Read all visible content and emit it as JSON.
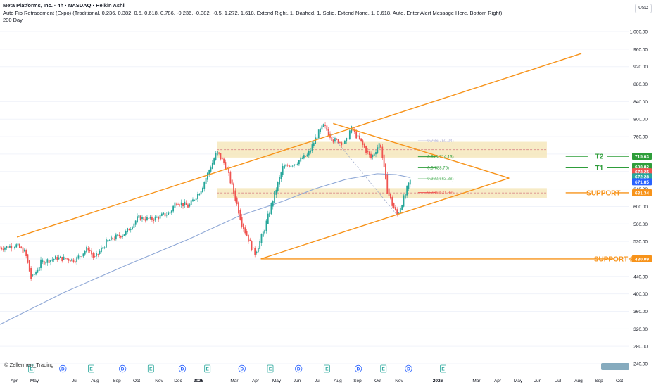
{
  "header": {
    "title": "Meta Platforms, Inc. · 4h · NASDAQ · Heikin Ashi",
    "indicator1": "Auto Fib Retracement (Expo) (Traditional, 0.236, 0.382, 0.5, 0.618, 0.786, -0.236, -0.382, -0.5, 1.272, 1.618, Extend Right, 1, Dashed, 1, Solid, Extend None, 1, 0.618, Auto, Enter Alert Message Here, Bottom Right)",
    "indicator2": "200 Day"
  },
  "currency_button": "USD",
  "credit": "© Zellermen_Trading",
  "colors": {
    "up": "#26a69a",
    "down": "#ef5350",
    "orange": "#f7931a",
    "green_line": "#2e9d3a",
    "ma": "#8fa8d6",
    "zone": "#f5e6b8",
    "grid": "#f0f3fa"
  },
  "chart_data": {
    "type": "candlestick",
    "symbol": "META",
    "timeframe": "4h",
    "y_axis": {
      "min": 240,
      "max": 1020,
      "ticks": [
        "240.00",
        "280.00",
        "320.00",
        "360.00",
        "400.00",
        "440.00",
        "480.00",
        "520.00",
        "560.00",
        "600.00",
        "640.00",
        "680.00",
        "720.00",
        "760.00",
        "800.00",
        "840.00",
        "880.00",
        "920.00",
        "960.00",
        "1,000.00"
      ]
    },
    "x_axis": {
      "labels": [
        "Apr",
        "May",
        "Jul",
        "Aug",
        "Sep",
        "Oct",
        "Nov",
        "Dec",
        "2025",
        "Mar",
        "Apr",
        "May",
        "Jun",
        "Jul",
        "Aug",
        "Sep",
        "Oct",
        "Nov",
        "2026",
        "Mar",
        "Apr",
        "May",
        "Jun",
        "Jul",
        "Aug",
        "Sep",
        "Oct"
      ],
      "bold": [
        "2025",
        "2026"
      ]
    },
    "price_path": [
      {
        "x": 0.0,
        "p": 505
      },
      {
        "x": 2.5,
        "p": 512
      },
      {
        "x": 4.0,
        "p": 495
      },
      {
        "x": 5.0,
        "p": 432
      },
      {
        "x": 6.5,
        "p": 472
      },
      {
        "x": 9.0,
        "p": 482
      },
      {
        "x": 12.0,
        "p": 478
      },
      {
        "x": 14.0,
        "p": 505
      },
      {
        "x": 15.0,
        "p": 480
      },
      {
        "x": 17.0,
        "p": 520
      },
      {
        "x": 20.0,
        "p": 540
      },
      {
        "x": 22.0,
        "p": 575
      },
      {
        "x": 24.0,
        "p": 570
      },
      {
        "x": 27.0,
        "p": 585
      },
      {
        "x": 28.0,
        "p": 612
      },
      {
        "x": 30.0,
        "p": 600
      },
      {
        "x": 32.0,
        "p": 640
      },
      {
        "x": 34.5,
        "p": 725
      },
      {
        "x": 36.0,
        "p": 690
      },
      {
        "x": 37.5,
        "p": 615
      },
      {
        "x": 38.5,
        "p": 560
      },
      {
        "x": 40.5,
        "p": 490
      },
      {
        "x": 42.0,
        "p": 545
      },
      {
        "x": 43.5,
        "p": 620
      },
      {
        "x": 45.0,
        "p": 690
      },
      {
        "x": 47.0,
        "p": 700
      },
      {
        "x": 49.0,
        "p": 718
      },
      {
        "x": 50.5,
        "p": 765
      },
      {
        "x": 51.5,
        "p": 785
      },
      {
        "x": 53.0,
        "p": 752
      },
      {
        "x": 55.0,
        "p": 745
      },
      {
        "x": 55.8,
        "p": 780
      },
      {
        "x": 57.5,
        "p": 745
      },
      {
        "x": 59.0,
        "p": 710
      },
      {
        "x": 60.5,
        "p": 748
      },
      {
        "x": 61.5,
        "p": 640
      },
      {
        "x": 62.5,
        "p": 600
      },
      {
        "x": 63.2,
        "p": 580
      },
      {
        "x": 64.5,
        "p": 630
      },
      {
        "x": 65.3,
        "p": 660
      }
    ],
    "moving_average": {
      "name": "200 Day",
      "points": [
        {
          "x": 0,
          "p": 330
        },
        {
          "x": 10,
          "p": 402
        },
        {
          "x": 20,
          "p": 465
        },
        {
          "x": 30,
          "p": 525
        },
        {
          "x": 38,
          "p": 578
        },
        {
          "x": 45,
          "p": 612
        },
        {
          "x": 50,
          "p": 640
        },
        {
          "x": 55,
          "p": 662
        },
        {
          "x": 60,
          "p": 675
        },
        {
          "x": 63,
          "p": 673
        },
        {
          "x": 65.3,
          "p": 666
        }
      ]
    },
    "current_price": 672.28,
    "trendlines": [
      {
        "name": "channel-upper",
        "from": {
          "x": 2.7,
          "p": 530
        },
        "to": {
          "x": 92.5,
          "p": 950
        }
      },
      {
        "name": "channel-lower",
        "from": {
          "x": 41.5,
          "p": 480
        },
        "to": {
          "x": 81.0,
          "p": 665
        }
      },
      {
        "name": "triangle-upper",
        "from": {
          "x": 53.0,
          "p": 790
        },
        "to": {
          "x": 81.0,
          "p": 665
        }
      },
      {
        "name": "support2-line",
        "from": {
          "x": 41.5,
          "p": 480
        },
        "to": {
          "x": 97.8,
          "p": 480
        }
      }
    ],
    "zones": [
      {
        "from_x": 34.5,
        "to_x": 87.0,
        "low": 712,
        "high": 748
      },
      {
        "from_x": 34.5,
        "to_x": 87.0,
        "low": 620,
        "high": 642
      }
    ],
    "fib_levels": [
      {
        "label": "0.786(750.24)",
        "price": 750.24,
        "color": "#b8b8d8"
      },
      {
        "label": "0.618(714.13)",
        "price": 714.13,
        "color": "#2e9d3a"
      },
      {
        "label": "0.5(688.75)",
        "price": 688.75,
        "color": "#2e9d3a"
      },
      {
        "label": "0.382(663.38)",
        "price": 663.38,
        "color": "#5fb86a"
      },
      {
        "label": "0.236(631.99)",
        "price": 631.99,
        "color": "#ef5350"
      }
    ],
    "annotations": [
      {
        "label": "T2",
        "price": 715.03,
        "color": "#2e9d3a"
      },
      {
        "label": "T1",
        "price": 688.82,
        "color": "#2e9d3a"
      },
      {
        "label": "SUPPORT",
        "price": 631.34,
        "color": "#f7931a"
      },
      {
        "label": "SUPPORT 2",
        "price": 480.09,
        "color": "#f7931a"
      }
    ],
    "price_labels": [
      {
        "text": "715.03",
        "price": 715.03,
        "bg": "#2e9d3a"
      },
      {
        "text": "688.82",
        "price": 691.0,
        "bg": "#2e9d3a"
      },
      {
        "text": "673.25",
        "price": 679.5,
        "bg": "#ef5350"
      },
      {
        "text": "672.28",
        "price": 668.0,
        "bg": "#26a69a"
      },
      {
        "text": "671.85",
        "price": 656.5,
        "bg": "#2962ff"
      },
      {
        "text": "631.34",
        "price": 631.34,
        "bg": "#f7931a"
      },
      {
        "text": "480.09",
        "price": 480.09,
        "bg": "#f7931a"
      }
    ],
    "event_markers": [
      {
        "x": 5.0,
        "type": "E"
      },
      {
        "x": 10.0,
        "type": "D"
      },
      {
        "x": 14.5,
        "type": "E"
      },
      {
        "x": 19.5,
        "type": "D"
      },
      {
        "x": 24.0,
        "type": "E"
      },
      {
        "x": 29.0,
        "type": "D"
      },
      {
        "x": 33.0,
        "type": "E"
      },
      {
        "x": 38.5,
        "type": "D"
      },
      {
        "x": 43.0,
        "type": "E"
      },
      {
        "x": 47.5,
        "type": "D"
      },
      {
        "x": 52.0,
        "type": "E"
      },
      {
        "x": 57.0,
        "type": "D"
      },
      {
        "x": 61.0,
        "type": "E"
      },
      {
        "x": 65.0,
        "type": "D"
      },
      {
        "x": 70.5,
        "type": "E"
      }
    ]
  }
}
